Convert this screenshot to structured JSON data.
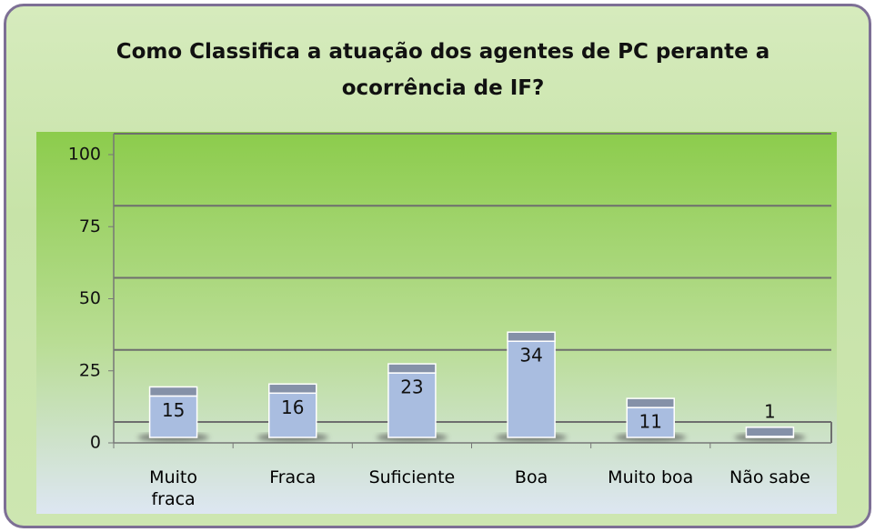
{
  "chart_data": {
    "type": "bar",
    "title": "Como Classifica a atuação dos agentes de PC perante a ocorrência de IF?",
    "categories": [
      "Muito fraca",
      "Fraca",
      "Suficiente",
      "Boa",
      "Muito boa",
      "Não sabe"
    ],
    "values": [
      15,
      16,
      23,
      34,
      11,
      1
    ],
    "color": "#a9bde0",
    "ylim": [
      0,
      100
    ],
    "yticks": [
      0,
      25,
      50,
      75,
      100
    ],
    "grid": true
  }
}
